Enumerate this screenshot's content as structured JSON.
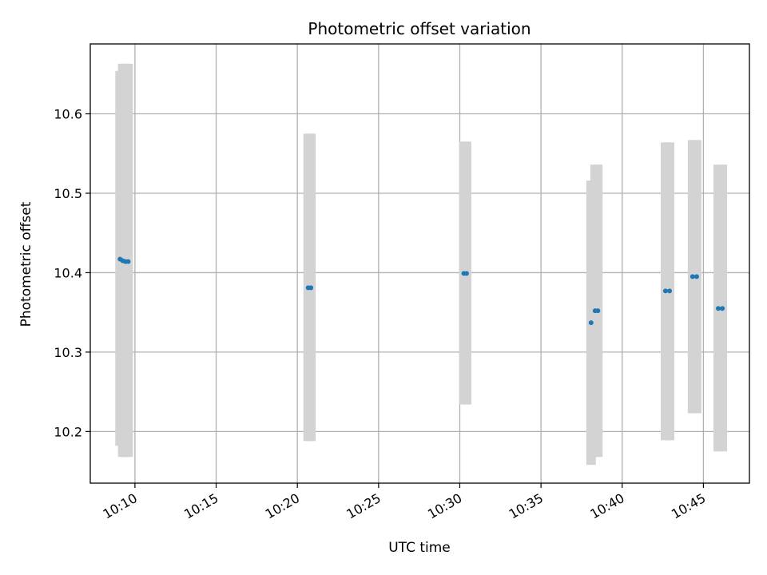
{
  "chart_data": {
    "type": "scatter",
    "title": "Photometric offset variation",
    "xlabel": "UTC time",
    "ylabel": "Photometric offset",
    "x_ticks": [
      "10:10",
      "10:15",
      "10:20",
      "10:25",
      "10:30",
      "10:35",
      "10:40",
      "10:45"
    ],
    "y_ticks": [
      "10.2",
      "10.3",
      "10.4",
      "10.5",
      "10.6"
    ],
    "xlim": [
      "10:07:15",
      "10:47:50"
    ],
    "ylim": [
      10.135,
      10.688
    ],
    "grid": true,
    "colors": {
      "point": "#1f77b4",
      "error_band": "#d3d3d3"
    },
    "series": [
      {
        "points": [
          {
            "x": "10:09:05",
            "y": 10.417,
            "yerr_low": 10.182,
            "yerr_high": 10.654
          },
          {
            "x": "10:09:15",
            "y": 10.415,
            "yerr_low": 10.168,
            "yerr_high": 10.663
          },
          {
            "x": "10:09:25",
            "y": 10.414,
            "yerr_low": 10.168,
            "yerr_high": 10.663
          },
          {
            "x": "10:09:35",
            "y": 10.414,
            "yerr_low": 10.168,
            "yerr_high": 10.663
          },
          {
            "x": "10:20:40",
            "y": 10.381,
            "yerr_low": 10.188,
            "yerr_high": 10.575
          },
          {
            "x": "10:20:50",
            "y": 10.381,
            "yerr_low": 10.188,
            "yerr_high": 10.575
          },
          {
            "x": "10:30:15",
            "y": 10.399,
            "yerr_low": 10.234,
            "yerr_high": 10.565
          },
          {
            "x": "10:30:25",
            "y": 10.399,
            "yerr_low": 10.234,
            "yerr_high": 10.565
          },
          {
            "x": "10:38:05",
            "y": 10.337,
            "yerr_low": 10.158,
            "yerr_high": 10.516
          },
          {
            "x": "10:38:20",
            "y": 10.352,
            "yerr_low": 10.168,
            "yerr_high": 10.536
          },
          {
            "x": "10:38:30",
            "y": 10.352,
            "yerr_low": 10.168,
            "yerr_high": 10.536
          },
          {
            "x": "10:42:40",
            "y": 10.377,
            "yerr_low": 10.189,
            "yerr_high": 10.564
          },
          {
            "x": "10:42:55",
            "y": 10.377,
            "yerr_low": 10.189,
            "yerr_high": 10.564
          },
          {
            "x": "10:44:20",
            "y": 10.395,
            "yerr_low": 10.223,
            "yerr_high": 10.567
          },
          {
            "x": "10:44:35",
            "y": 10.395,
            "yerr_low": 10.223,
            "yerr_high": 10.567
          },
          {
            "x": "10:45:55",
            "y": 10.355,
            "yerr_low": 10.175,
            "yerr_high": 10.536
          },
          {
            "x": "10:46:10",
            "y": 10.355,
            "yerr_low": 10.175,
            "yerr_high": 10.536
          }
        ]
      }
    ]
  }
}
